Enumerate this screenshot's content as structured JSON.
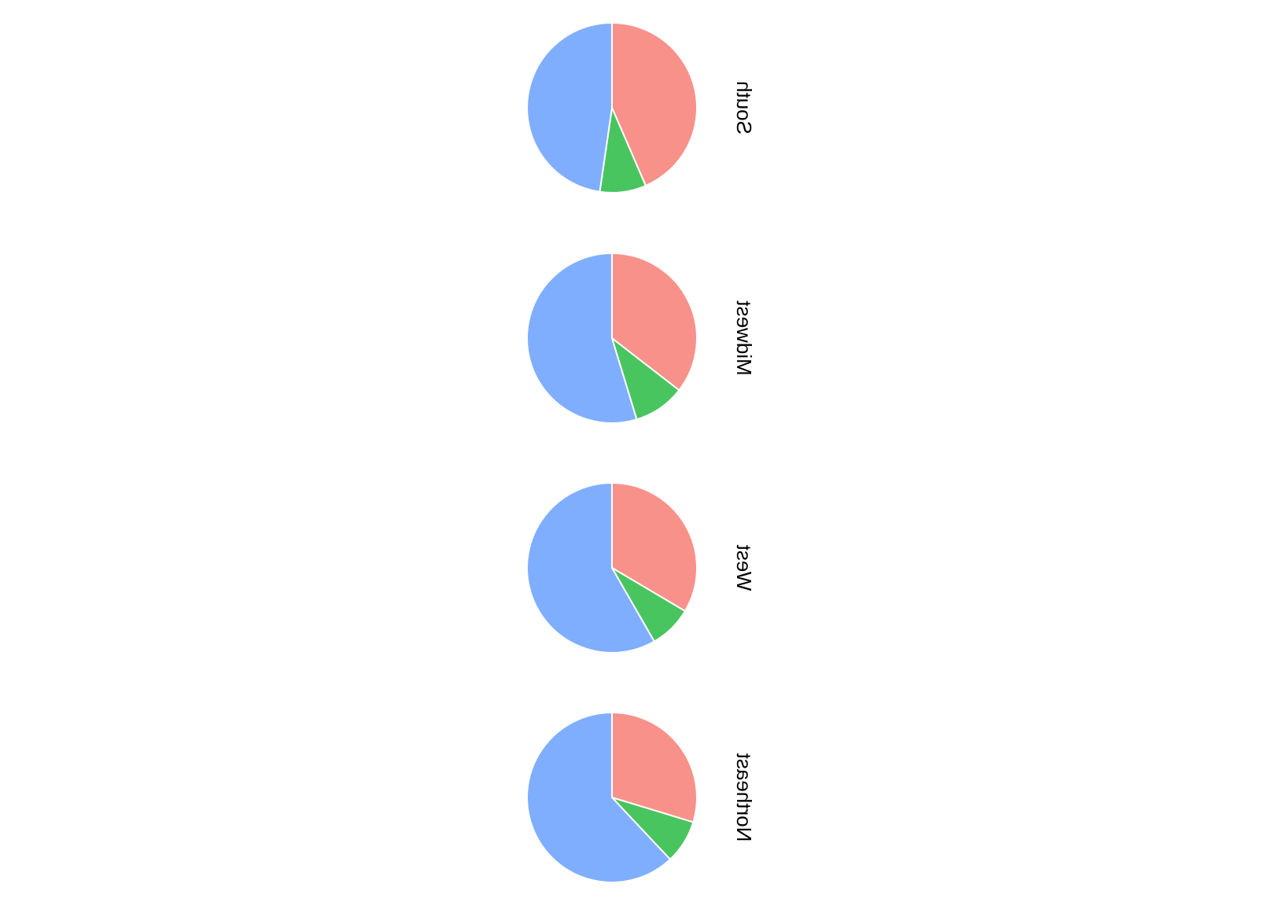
{
  "chart_data": [
    {
      "type": "pie",
      "facet": "South",
      "slices": [
        {
          "value": 0.435,
          "color": "#F8918A"
        },
        {
          "value": 0.088,
          "color": "#48C55F"
        },
        {
          "value": 0.477,
          "color": "#80AEFF"
        }
      ]
    },
    {
      "type": "pie",
      "facet": "Midwest",
      "slices": [
        {
          "value": 0.355,
          "color": "#F8918A"
        },
        {
          "value": 0.098,
          "color": "#48C55F"
        },
        {
          "value": 0.547,
          "color": "#80AEFF"
        }
      ]
    },
    {
      "type": "pie",
      "facet": "West",
      "slices": [
        {
          "value": 0.335,
          "color": "#F8918A"
        },
        {
          "value": 0.082,
          "color": "#48C55F"
        },
        {
          "value": 0.583,
          "color": "#80AEFF"
        }
      ]
    },
    {
      "type": "pie",
      "facet": "Northeast",
      "slices": [
        {
          "value": 0.297,
          "color": "#F8918A"
        },
        {
          "value": 0.083,
          "color": "#48C55F"
        },
        {
          "value": 0.62,
          "color": "#80AEFF"
        }
      ]
    }
  ]
}
